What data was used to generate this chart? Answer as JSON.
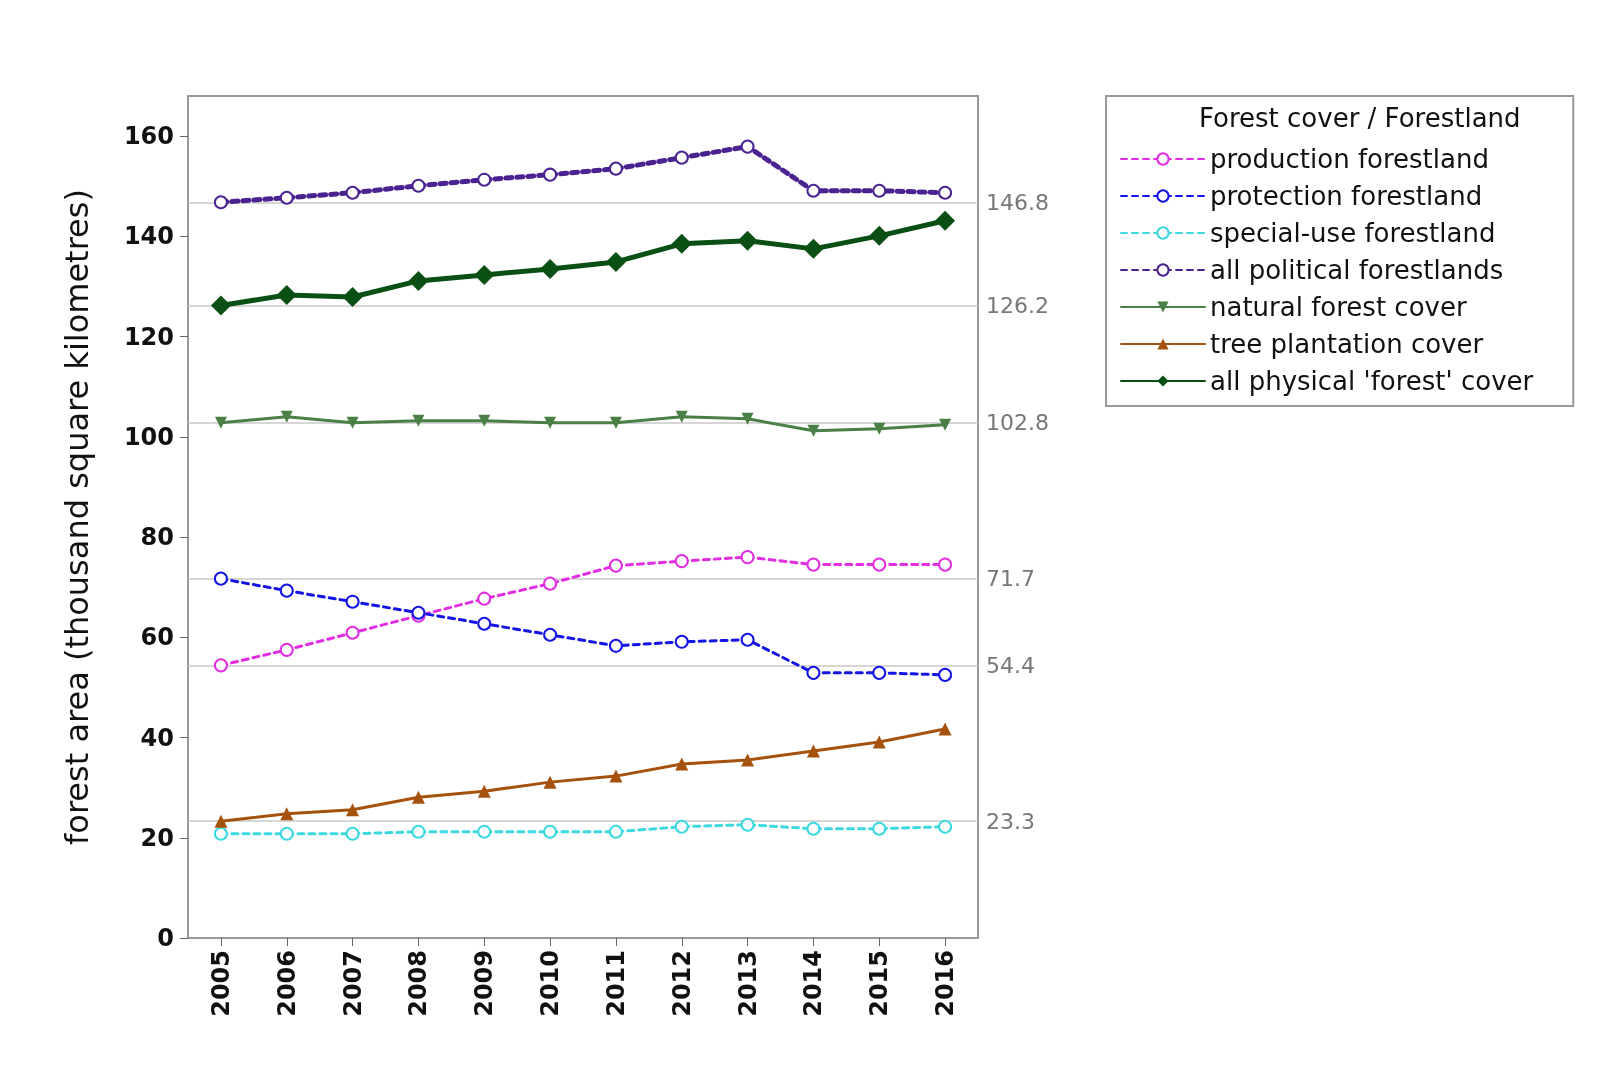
{
  "chart_data": {
    "type": "line",
    "ylabel": "forest area (thousand square kilometres)",
    "legend_title": "Forest cover / Forestland",
    "categories": [
      "2005",
      "2006",
      "2007",
      "2008",
      "2009",
      "2010",
      "2011",
      "2012",
      "2013",
      "2014",
      "2015",
      "2016"
    ],
    "series": [
      {
        "name": "production forestland",
        "color": "#e22ee2",
        "marker": "circle",
        "line_style": "dashed",
        "values": [
          54.4,
          57.5,
          60.9,
          64.3,
          67.7,
          70.7,
          74.3,
          75.2,
          76.0,
          74.5,
          74.5,
          74.5
        ]
      },
      {
        "name": "protection forestland",
        "color": "#1414e6",
        "marker": "circle",
        "line_style": "dashed",
        "values": [
          71.7,
          69.3,
          67.1,
          64.9,
          62.7,
          60.5,
          58.3,
          59.1,
          59.5,
          52.9,
          52.9,
          52.5
        ]
      },
      {
        "name": "special-use forestland",
        "color": "#3dd8e0",
        "marker": "circle",
        "line_style": "dashed",
        "values": [
          20.8,
          20.8,
          20.8,
          21.2,
          21.2,
          21.2,
          21.2,
          22.2,
          22.6,
          21.8,
          21.8,
          22.2
        ]
      },
      {
        "name": "all political forestlands",
        "color": "#4b2390",
        "marker": "circle",
        "line_style": "dashed",
        "values": [
          146.8,
          147.7,
          148.7,
          150.1,
          151.3,
          152.3,
          153.5,
          155.7,
          157.9,
          149.1,
          149.1,
          148.7
        ]
      },
      {
        "name": "natural forest cover",
        "color": "#4a7f45",
        "marker": "triangle-down",
        "line_style": "solid",
        "values": [
          102.8,
          104.0,
          102.8,
          103.2,
          103.2,
          102.8,
          102.8,
          104.0,
          103.6,
          101.2,
          101.6,
          102.4
        ]
      },
      {
        "name": "tree plantation cover",
        "color": "#a5520f",
        "marker": "triangle",
        "line_style": "solid",
        "values": [
          23.3,
          24.8,
          25.6,
          28.1,
          29.3,
          31.1,
          32.3,
          34.7,
          35.5,
          37.3,
          39.1,
          41.7
        ]
      },
      {
        "name": "all physical 'forest' cover",
        "color": "#0a4f14",
        "marker": "diamond",
        "line_style": "solid",
        "values": [
          126.2,
          128.3,
          127.9,
          131.1,
          132.3,
          133.5,
          134.9,
          138.5,
          139.1,
          137.5,
          140.1,
          143.1
        ]
      }
    ],
    "ylim": [
      0,
      168
    ],
    "yticks": [
      0,
      20,
      40,
      60,
      80,
      100,
      120,
      140,
      160
    ],
    "ref_lines": [
      {
        "axis": "y",
        "value": 146.8,
        "label": "146.8",
        "color": "#c8c8c8"
      },
      {
        "axis": "y",
        "value": 126.2,
        "label": "126.2",
        "color": "#c8c8c8"
      },
      {
        "axis": "y",
        "value": 102.8,
        "label": "102.8",
        "color": "#c8c8c8"
      },
      {
        "axis": "y",
        "value": 71.7,
        "label": "71.7",
        "color": "#c8c8c8"
      },
      {
        "axis": "y",
        "value": 54.4,
        "label": "54.4",
        "color": "#c8c8c8"
      },
      {
        "axis": "y",
        "value": 23.3,
        "label": "23.3",
        "color": "#c8c8c8"
      }
    ],
    "grid": false,
    "legend": "top right"
  }
}
